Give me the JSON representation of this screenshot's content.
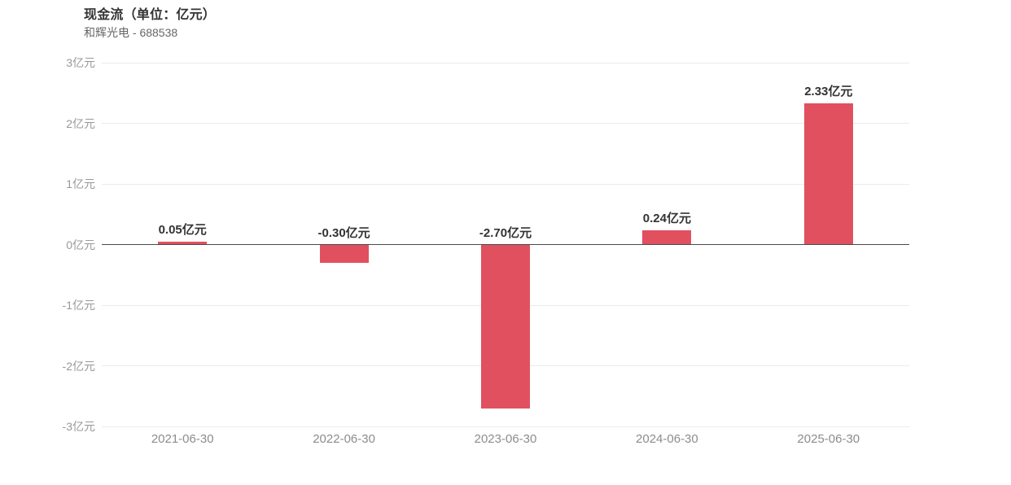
{
  "header": {
    "title": "现金流（单位：亿元）",
    "subtitle": "和辉光电 - 688538"
  },
  "chart_data": {
    "type": "bar",
    "title": "现金流（单位：亿元）",
    "subtitle": "和辉光电 - 688538",
    "categories": [
      "2021-06-30",
      "2022-06-30",
      "2023-06-30",
      "2024-06-30",
      "2025-06-30"
    ],
    "values": [
      0.05,
      -0.3,
      -2.7,
      0.24,
      2.33
    ],
    "value_labels": [
      "0.05亿元",
      "-0.30亿元",
      "-2.70亿元",
      "0.24亿元",
      "2.33亿元"
    ],
    "ytick_values": [
      3,
      2,
      1,
      0,
      -1,
      -2,
      -3
    ],
    "ytick_labels": [
      "3亿元",
      "2亿元",
      "1亿元",
      "0亿元",
      "-1亿元",
      "-2亿元",
      "-3亿元"
    ],
    "ylim": [
      -3,
      3
    ],
    "grid": true,
    "legend": "none",
    "bar_color": "#e1505f",
    "gridline_color": "#ebebeb",
    "zero_line_color": "#4a4a4a"
  }
}
